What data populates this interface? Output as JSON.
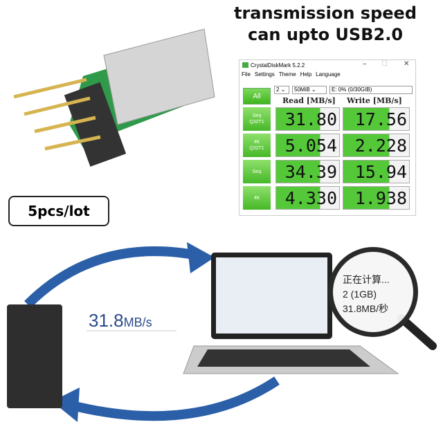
{
  "headline": {
    "line1": "transmission speed",
    "line2": "can upto USB2.0"
  },
  "cdm": {
    "title": "CrystalDiskMark 5.2.2",
    "menu": [
      "File",
      "Settings",
      "Theme",
      "Help",
      "Language"
    ],
    "all_label": "All",
    "count": "2",
    "size": "50MiB",
    "drive": "E: 0% (0/30GIB)",
    "read_header": "Read [MB/s]",
    "write_header": "Write [MB/s]",
    "rows": [
      {
        "l1": "Seq",
        "l2": "Q32T1",
        "read": "31.80",
        "write": "17.56"
      },
      {
        "l1": "4K",
        "l2": "Q32T1",
        "read": "5.054",
        "write": "2.228"
      },
      {
        "l1": "Seq",
        "l2": "",
        "read": "34.39",
        "write": "15.94"
      },
      {
        "l1": "4K",
        "l2": "",
        "read": "4.330",
        "write": "1.938"
      }
    ]
  },
  "lot_label": "5pcs/lot",
  "speed": {
    "value": "31.8",
    "unit": "MB/s"
  },
  "magnifier": {
    "line1": "正在计算...",
    "line2": "2 (1GB)",
    "line3": "31.8MB/秒"
  },
  "colors": {
    "accent_blue": "#2b5fa8",
    "cdm_green": "#4cc030",
    "board_green": "#2f9a4a"
  }
}
